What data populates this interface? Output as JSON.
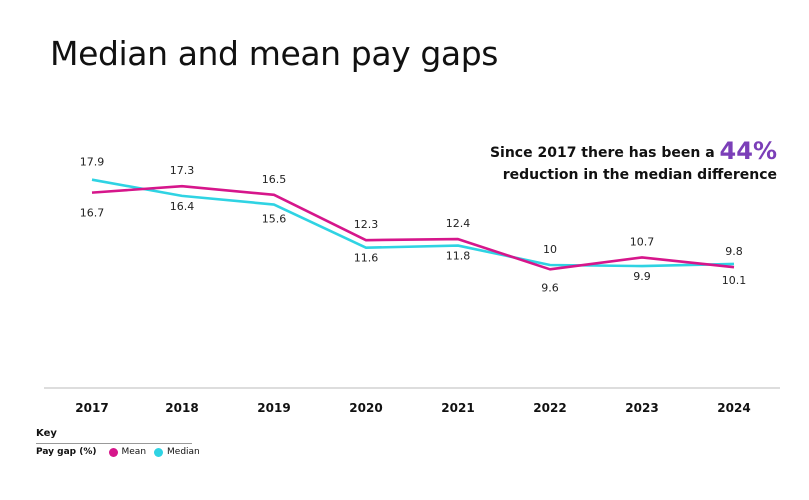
{
  "title": "Median and mean pay gaps",
  "annotation": {
    "before": "Since 2017 there has been a",
    "highlight": "44%",
    "after": "reduction in the median difference"
  },
  "key": {
    "heading": "Key",
    "label": "Pay gap (%)"
  },
  "colors": {
    "mean": "#d6168b",
    "median": "#2fd3e3",
    "accent": "#7b3fb8"
  },
  "chart_data": {
    "type": "line",
    "title": "Median and mean pay gaps",
    "categories": [
      "2017",
      "2018",
      "2019",
      "2020",
      "2021",
      "2022",
      "2023",
      "2024"
    ],
    "series": [
      {
        "name": "Mean",
        "values": [
          16.7,
          17.3,
          16.5,
          12.3,
          12.4,
          9.6,
          10.7,
          9.8
        ]
      },
      {
        "name": "Median",
        "values": [
          17.9,
          16.4,
          15.6,
          11.6,
          11.8,
          10,
          9.9,
          10.1
        ]
      }
    ],
    "ylim": [
      0,
      24
    ],
    "grid": false,
    "legend": "bottom-left"
  }
}
